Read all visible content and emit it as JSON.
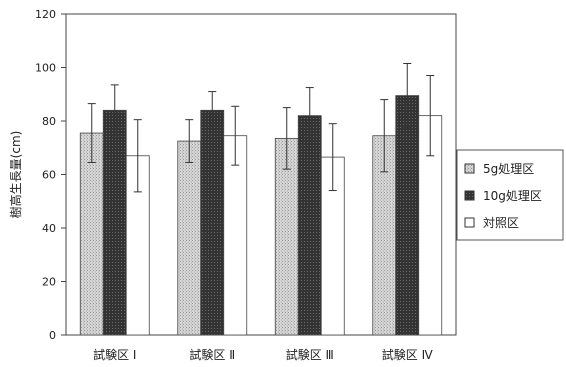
{
  "chart_data": {
    "type": "bar",
    "ylabel": "樹高生長量(cm)",
    "xlabel": "",
    "ylim": [
      0,
      120
    ],
    "yticks": [
      0,
      20,
      40,
      60,
      80,
      100,
      120
    ],
    "categories": [
      "試験区 Ⅰ",
      "試験区 Ⅱ",
      "試験区 Ⅲ",
      "試験区 Ⅳ"
    ],
    "series": [
      {
        "name": "5g処理区",
        "color": "#c9c9c9",
        "values": [
          75.5,
          72.5,
          73.5,
          74.5
        ],
        "errors": [
          11,
          8,
          11.5,
          13.5
        ]
      },
      {
        "name": "10g処理区",
        "color": "#3a3a3a",
        "values": [
          84,
          84,
          82,
          89.5
        ],
        "errors": [
          9.5,
          7,
          10.5,
          12
        ]
      },
      {
        "name": "対照区",
        "color": "#ffffff",
        "values": [
          67,
          74.5,
          66.5,
          82
        ],
        "errors": [
          13.5,
          11,
          12.5,
          15
        ]
      }
    ],
    "legend_position": "right",
    "grid": false,
    "error_bars": true
  }
}
